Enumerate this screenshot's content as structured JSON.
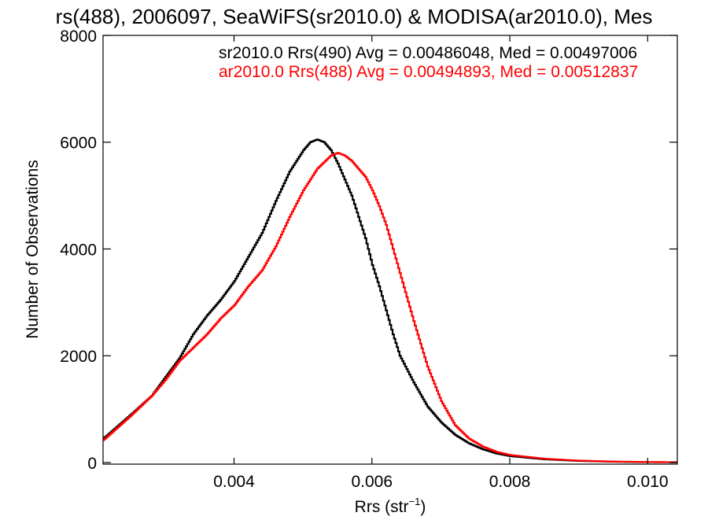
{
  "chart_data": {
    "type": "line",
    "title": "rs(488), 2006097, SeaWiFS(sr2010.0) & MODISA(ar2010.0), Mes",
    "xlabel": "Rrs (str",
    "xlabel_sup": "−1",
    "xlabel_close": ")",
    "ylabel": "Number of Observations",
    "xlim": [
      0.0021,
      0.01043
    ],
    "ylim": [
      -30,
      8000
    ],
    "x_ticks": [
      0.004,
      0.006,
      0.008,
      0.01
    ],
    "x_tick_labels": [
      "0.004",
      "0.006",
      "0.008",
      "0.010"
    ],
    "y_ticks": [
      0,
      2000,
      4000,
      6000,
      8000
    ],
    "y_tick_labels": [
      "0",
      "2000",
      "4000",
      "6000",
      "8000"
    ],
    "grid": false,
    "legend": {
      "placement": "top-right"
    },
    "series": [
      {
        "name": "sr2010.0 Rrs(490) Avg = 0.00486048, Med = 0.00497006",
        "color": "#000000",
        "x": [
          0.0021,
          0.0025,
          0.0028,
          0.003,
          0.0032,
          0.0034,
          0.0036,
          0.0038,
          0.004,
          0.0042,
          0.0044,
          0.0046,
          0.0048,
          0.005,
          0.0051,
          0.0052,
          0.0053,
          0.0054,
          0.0055,
          0.0056,
          0.0057,
          0.0058,
          0.0059,
          0.006,
          0.0061,
          0.0062,
          0.0063,
          0.0064,
          0.0066,
          0.0068,
          0.007,
          0.0072,
          0.0074,
          0.0076,
          0.0078,
          0.008,
          0.0085,
          0.009,
          0.0095,
          0.01,
          0.01043
        ],
        "y": [
          450,
          900,
          1250,
          1600,
          1950,
          2400,
          2750,
          3050,
          3400,
          3850,
          4300,
          4900,
          5450,
          5850,
          6000,
          6050,
          6000,
          5850,
          5600,
          5300,
          5000,
          4600,
          4200,
          3700,
          3300,
          2850,
          2400,
          2000,
          1500,
          1050,
          750,
          520,
          360,
          250,
          170,
          120,
          60,
          30,
          15,
          8,
          5
        ]
      },
      {
        "name": "ar2010.0 Rrs(488) Avg = 0.00494893, Med = 0.00512837",
        "color": "#ff0000",
        "x": [
          0.0021,
          0.0025,
          0.0028,
          0.003,
          0.0032,
          0.0034,
          0.0036,
          0.0038,
          0.004,
          0.0042,
          0.0044,
          0.0046,
          0.0048,
          0.005,
          0.0052,
          0.0054,
          0.0055,
          0.0056,
          0.0057,
          0.0058,
          0.0059,
          0.006,
          0.0061,
          0.0062,
          0.0063,
          0.0064,
          0.0065,
          0.0066,
          0.0068,
          0.007,
          0.0072,
          0.0074,
          0.0076,
          0.0078,
          0.008,
          0.0085,
          0.009,
          0.0095,
          0.01,
          0.01043
        ],
        "y": [
          420,
          880,
          1250,
          1550,
          1900,
          2150,
          2400,
          2700,
          2950,
          3300,
          3600,
          4050,
          4600,
          5100,
          5500,
          5750,
          5800,
          5750,
          5650,
          5500,
          5350,
          5100,
          4800,
          4450,
          4000,
          3550,
          3100,
          2650,
          1800,
          1150,
          700,
          450,
          300,
          200,
          140,
          70,
          35,
          18,
          10,
          6
        ]
      }
    ]
  }
}
